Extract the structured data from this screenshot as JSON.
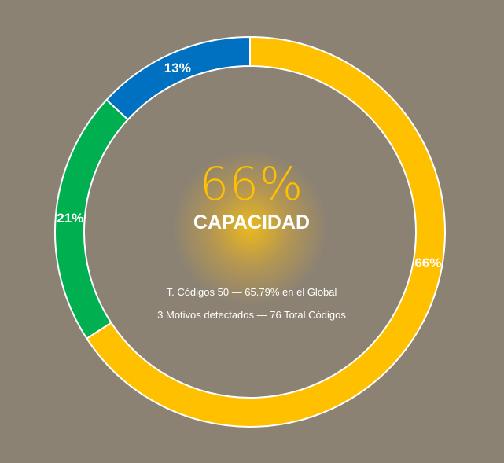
{
  "chart_data": {
    "type": "pie",
    "style": "donut",
    "slices": [
      {
        "label": "66%",
        "value": 65.79,
        "color": "#ffc000"
      },
      {
        "label": "21%",
        "value": 21.05,
        "color": "#00b050"
      },
      {
        "label": "13%",
        "value": 13.16,
        "color": "#0070c0"
      }
    ],
    "start_angle_deg": 0,
    "direction": "clockwise",
    "legend": "none"
  },
  "center": {
    "percentage": "66%",
    "title": "CAPACIDAD",
    "line1": "T. Códigos 50 — 65.79% en el Global",
    "line2": "3 Motivos detectados — 76 Total Códigos"
  },
  "colors": {
    "background": "#8b8274",
    "accent": "#ffc000",
    "ring_stroke": "#ffffff"
  }
}
